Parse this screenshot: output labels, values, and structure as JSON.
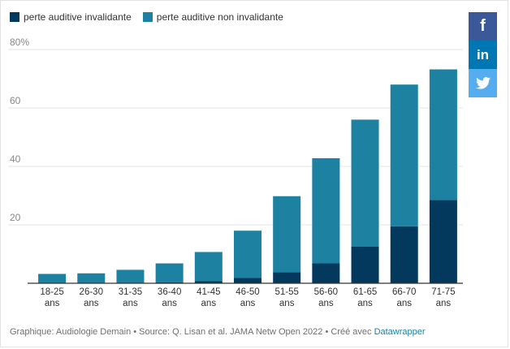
{
  "legend": {
    "items": [
      {
        "label": "perte auditive invalidante",
        "color": "#04395e"
      },
      {
        "label": "perte auditive non invalidante",
        "color": "#1d81a2"
      }
    ]
  },
  "share": {
    "facebook": {
      "icon": "facebook-icon",
      "label": "f",
      "color": "#3b5998"
    },
    "linkedin": {
      "icon": "linkedin-icon",
      "label": "in",
      "color": "#0077b5"
    },
    "twitter": {
      "icon": "twitter-icon",
      "color": "#55acee"
    }
  },
  "footer": {
    "text": "Graphique: Audiologie Demain • Source: Q. Lisan et al. JAMA Netw Open 2022 • Créé avec ",
    "link": "Datawrapper"
  },
  "chart_data": {
    "type": "bar",
    "stacked": true,
    "title": "",
    "xlabel": "",
    "ylabel": "",
    "ylim": [
      0,
      80
    ],
    "yticks": [
      {
        "value": 0,
        "label": ""
      },
      {
        "value": 20,
        "label": "20"
      },
      {
        "value": 40,
        "label": "40"
      },
      {
        "value": 60,
        "label": "60"
      },
      {
        "value": 80,
        "label": "80%"
      }
    ],
    "categories": [
      [
        "18-25",
        "ans"
      ],
      [
        "26-30",
        "ans"
      ],
      [
        "31-35",
        "ans"
      ],
      [
        "36-40",
        "ans"
      ],
      [
        "41-45",
        "ans"
      ],
      [
        "46-50",
        "ans"
      ],
      [
        "51-55",
        "ans"
      ],
      [
        "56-60",
        "ans"
      ],
      [
        "61-65",
        "ans"
      ],
      [
        "66-70",
        "ans"
      ],
      [
        "71-75",
        "ans"
      ]
    ],
    "series": [
      {
        "name": "perte auditive invalidante",
        "color": "#04395e",
        "values": [
          0,
          0,
          0,
          0.3,
          0.7,
          1.8,
          3.8,
          6.8,
          12.5,
          19.5,
          28.5
        ]
      },
      {
        "name": "perte auditive non invalidante",
        "color": "#1d81a2",
        "values": [
          3.2,
          3.4,
          4.6,
          6.5,
          10.0,
          16.2,
          26.0,
          36.0,
          43.5,
          48.5,
          44.7
        ]
      }
    ]
  }
}
